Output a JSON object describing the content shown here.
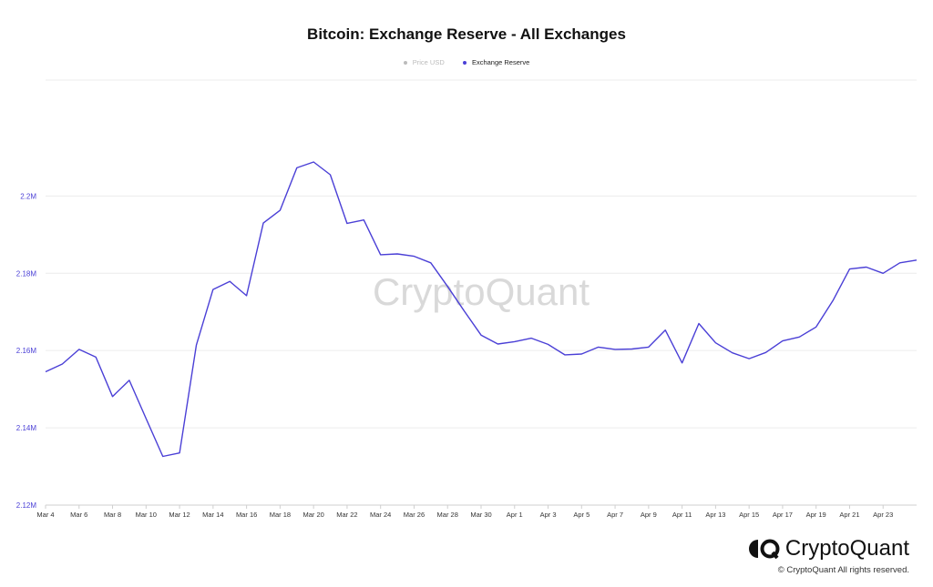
{
  "brand": {
    "name": "CryptoQuant",
    "copyright": "© CryptoQuant All rights reserved."
  },
  "chart_data": {
    "type": "line",
    "title": "Bitcoin: Exchange Reserve - All Exchanges",
    "legend": [
      {
        "name": "Price USD",
        "color": "#bbbbbb",
        "active": false
      },
      {
        "name": "Exchange Reserve",
        "color": "#4a3fd6",
        "active": true
      }
    ],
    "legend_position": "top",
    "watermark": "CryptoQuant",
    "grid": true,
    "series_color": "#4a3fd6",
    "ylim": [
      2120000,
      2230000
    ],
    "yticks": [
      {
        "value": 2120000,
        "label": "2.12M"
      },
      {
        "value": 2140000,
        "label": "2.14M"
      },
      {
        "value": 2160000,
        "label": "2.16M"
      },
      {
        "value": 2180000,
        "label": "2.18M"
      },
      {
        "value": 2200000,
        "label": "2.2M"
      }
    ],
    "xticks": [
      "Mar 4",
      "Mar 6",
      "Mar 8",
      "Mar 10",
      "Mar 12",
      "Mar 14",
      "Mar 16",
      "Mar 18",
      "Mar 20",
      "Mar 22",
      "Mar 24",
      "Mar 26",
      "Mar 28",
      "Mar 30",
      "Apr 1",
      "Apr 3",
      "Apr 5",
      "Apr 7",
      "Apr 9",
      "Apr 11",
      "Apr 13",
      "Apr 15",
      "Apr 17",
      "Apr 19",
      "Apr 21",
      "Apr 23"
    ],
    "x": [
      "Mar 4",
      "Mar 5",
      "Mar 6",
      "Mar 7",
      "Mar 8",
      "Mar 9",
      "Mar 10",
      "Mar 11",
      "Mar 12",
      "Mar 13",
      "Mar 14",
      "Mar 15",
      "Mar 16",
      "Mar 17",
      "Mar 18",
      "Mar 19",
      "Mar 20",
      "Mar 21",
      "Mar 22",
      "Mar 23",
      "Mar 24",
      "Mar 25",
      "Mar 26",
      "Mar 27",
      "Mar 28",
      "Mar 29",
      "Mar 30",
      "Mar 31",
      "Apr 1",
      "Apr 2",
      "Apr 3",
      "Apr 4",
      "Apr 5",
      "Apr 6",
      "Apr 7",
      "Apr 8",
      "Apr 9",
      "Apr 10",
      "Apr 11",
      "Apr 12",
      "Apr 13",
      "Apr 14",
      "Apr 15",
      "Apr 16",
      "Apr 17",
      "Apr 18",
      "Apr 19",
      "Apr 20",
      "Apr 21",
      "Apr 22",
      "Apr 23",
      "Apr 24",
      "Apr 25"
    ],
    "series": [
      {
        "values": [
          2154500,
          2156500,
          2160300,
          2158300,
          2148100,
          2152300,
          2142400,
          2132600,
          2133500,
          2161400,
          2175800,
          2177900,
          2174200,
          2193000,
          2196300,
          2207300,
          2208800,
          2205500,
          2192900,
          2193800,
          2184800,
          2185000,
          2184400,
          2182700,
          2176600,
          2170200,
          2164000,
          2161700,
          2162300,
          2163200,
          2161600,
          2158900,
          2159100,
          2160900,
          2160300,
          2160400,
          2160900,
          2165300,
          2156800,
          2167000,
          2162000,
          2159400,
          2157900,
          2159500,
          2162500,
          2163500,
          2166100,
          2172900,
          2181100,
          2181600,
          2180000,
          2182700,
          2183400
        ]
      }
    ]
  }
}
